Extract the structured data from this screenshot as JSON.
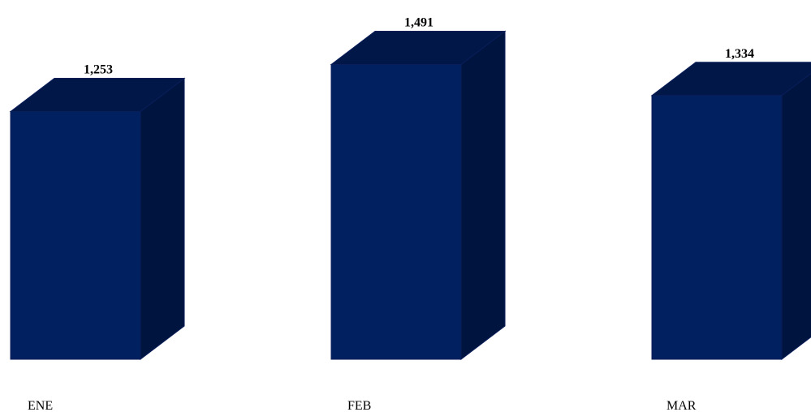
{
  "chart_data": {
    "type": "bar",
    "style": "3d-column",
    "categories": [
      "ENE",
      "FEB",
      "MAR"
    ],
    "values": [
      1253,
      1491,
      1334
    ],
    "value_labels": [
      "1,253",
      "1,491",
      "1,334"
    ],
    "title": "",
    "xlabel": "",
    "ylabel": "",
    "grid": false,
    "legend": "none",
    "colors": {
      "front": "#002060",
      "top": "#001748",
      "side": "#001440",
      "edge": "#0a1e5a"
    }
  }
}
